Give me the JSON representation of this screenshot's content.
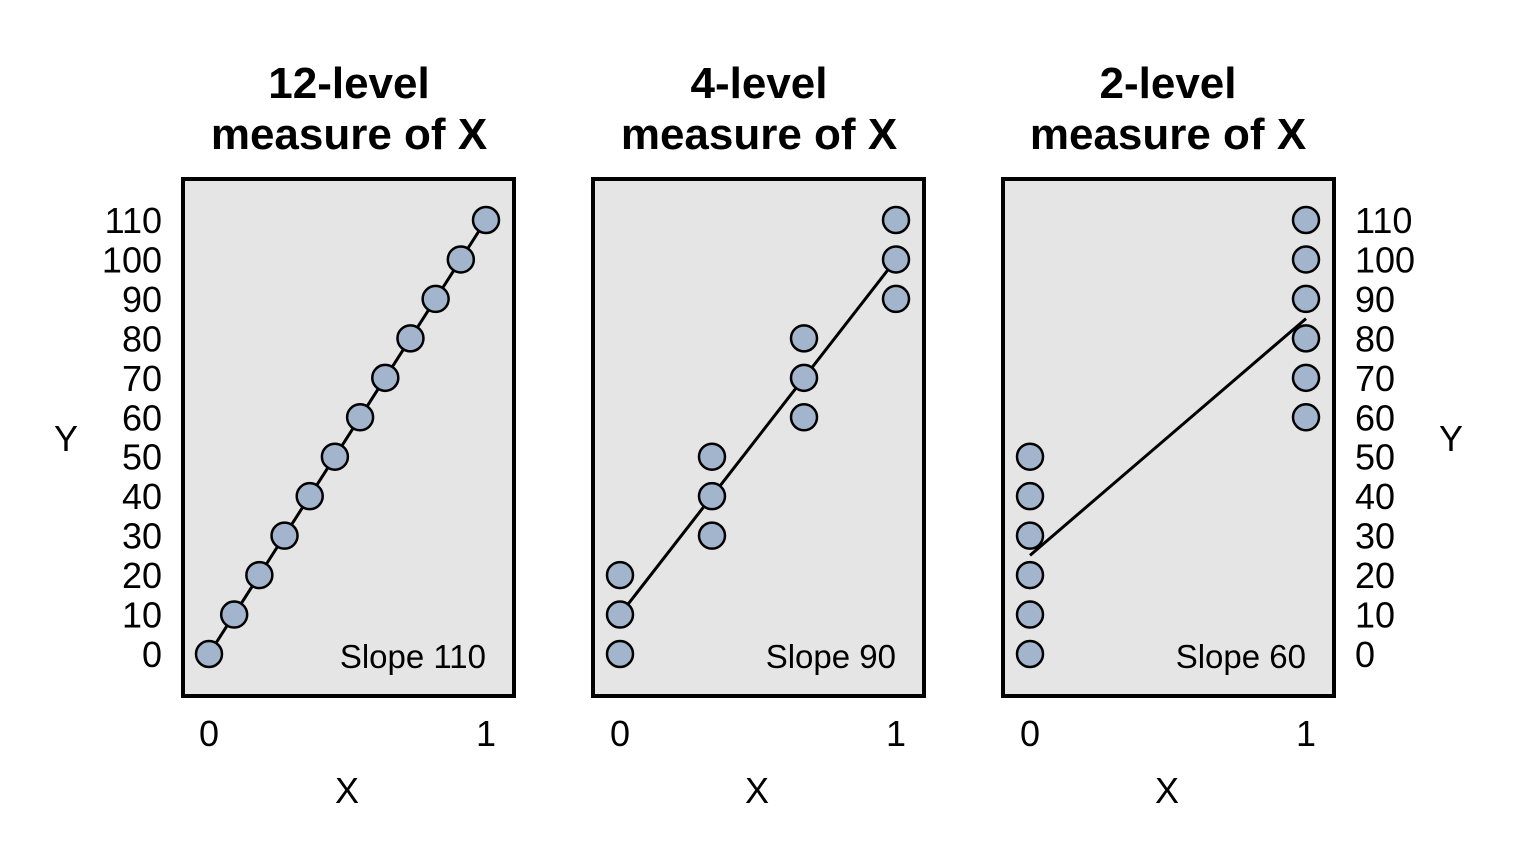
{
  "chart_data": [
    {
      "type": "scatter",
      "title_line1": "12-level",
      "title_line2": "measure of X",
      "xlabel": "X",
      "ylabel": "Y",
      "annotation": "Slope 110",
      "x_ticks": [
        "0",
        "1"
      ],
      "y_ticks": [
        "0",
        "10",
        "20",
        "30",
        "40",
        "50",
        "60",
        "70",
        "80",
        "90",
        "100",
        "110"
      ],
      "xlim": [
        0,
        1
      ],
      "ylim": [
        0,
        110
      ],
      "point_color": "#a3b5cc",
      "points": [
        {
          "x": 0.0,
          "y": 0
        },
        {
          "x": 0.0909,
          "y": 10
        },
        {
          "x": 0.1818,
          "y": 20
        },
        {
          "x": 0.2727,
          "y": 30
        },
        {
          "x": 0.3636,
          "y": 40
        },
        {
          "x": 0.4545,
          "y": 50
        },
        {
          "x": 0.5455,
          "y": 60
        },
        {
          "x": 0.6364,
          "y": 70
        },
        {
          "x": 0.7273,
          "y": 80
        },
        {
          "x": 0.8182,
          "y": 90
        },
        {
          "x": 0.9091,
          "y": 100
        },
        {
          "x": 1.0,
          "y": 110
        }
      ],
      "fit_line": [
        {
          "x": 0,
          "y": 0
        },
        {
          "x": 1,
          "y": 110
        }
      ]
    },
    {
      "type": "scatter",
      "title_line1": "4-level",
      "title_line2": "measure of X",
      "xlabel": "X",
      "ylabel": "",
      "annotation": "Slope 90",
      "x_ticks": [
        "0",
        "1"
      ],
      "y_ticks": [],
      "xlim": [
        0,
        1
      ],
      "ylim": [
        0,
        110
      ],
      "point_color": "#a3b5cc",
      "points": [
        {
          "x": 0.0,
          "y": 0
        },
        {
          "x": 0.0,
          "y": 10
        },
        {
          "x": 0.0,
          "y": 20
        },
        {
          "x": 0.3333,
          "y": 30
        },
        {
          "x": 0.3333,
          "y": 40
        },
        {
          "x": 0.3333,
          "y": 50
        },
        {
          "x": 0.6667,
          "y": 60
        },
        {
          "x": 0.6667,
          "y": 70
        },
        {
          "x": 0.6667,
          "y": 80
        },
        {
          "x": 1.0,
          "y": 90
        },
        {
          "x": 1.0,
          "y": 100
        },
        {
          "x": 1.0,
          "y": 110
        }
      ],
      "fit_line": [
        {
          "x": 0,
          "y": 10
        },
        {
          "x": 1,
          "y": 100
        }
      ]
    },
    {
      "type": "scatter",
      "title_line1": "2-level",
      "title_line2": "measure of X",
      "xlabel": "X",
      "ylabel": "Y",
      "annotation": "Slope 60",
      "x_ticks": [
        "0",
        "1"
      ],
      "y_ticks": [
        "0",
        "10",
        "20",
        "30",
        "40",
        "50",
        "60",
        "70",
        "80",
        "90",
        "100",
        "110"
      ],
      "xlim": [
        0,
        1
      ],
      "ylim": [
        0,
        110
      ],
      "point_color": "#a3b5cc",
      "points": [
        {
          "x": 0.0,
          "y": 0
        },
        {
          "x": 0.0,
          "y": 10
        },
        {
          "x": 0.0,
          "y": 20
        },
        {
          "x": 0.0,
          "y": 30
        },
        {
          "x": 0.0,
          "y": 40
        },
        {
          "x": 0.0,
          "y": 50
        },
        {
          "x": 1.0,
          "y": 60
        },
        {
          "x": 1.0,
          "y": 70
        },
        {
          "x": 1.0,
          "y": 80
        },
        {
          "x": 1.0,
          "y": 90
        },
        {
          "x": 1.0,
          "y": 100
        },
        {
          "x": 1.0,
          "y": 110
        }
      ],
      "fit_line": [
        {
          "x": 0,
          "y": 25
        },
        {
          "x": 1,
          "y": 85
        }
      ]
    }
  ]
}
